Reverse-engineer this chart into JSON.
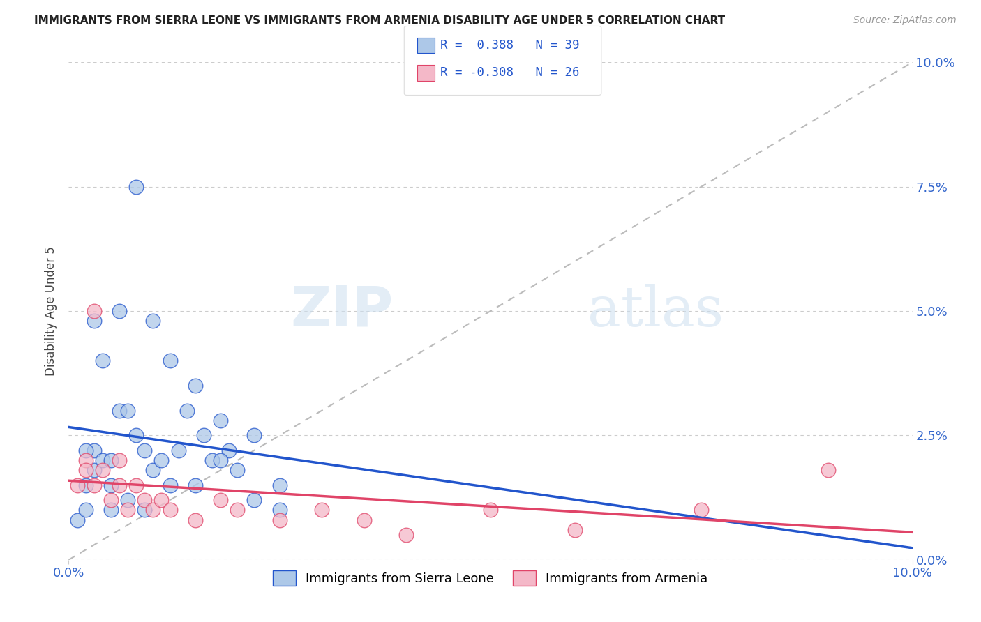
{
  "title": "IMMIGRANTS FROM SIERRA LEONE VS IMMIGRANTS FROM ARMENIA DISABILITY AGE UNDER 5 CORRELATION CHART",
  "source": "Source: ZipAtlas.com",
  "ylabel": "Disability Age Under 5",
  "legend_label_1": "Immigrants from Sierra Leone",
  "legend_label_2": "Immigrants from Armenia",
  "r1": 0.388,
  "n1": 39,
  "r2": -0.308,
  "n2": 26,
  "color_sierra": "#adc8e8",
  "color_armenia": "#f4b8c8",
  "color_sierra_line": "#2255cc",
  "color_armenia_line": "#e04468",
  "color_diag": "#bbbbbb",
  "sierra_x": [
    0.001,
    0.002,
    0.002,
    0.003,
    0.003,
    0.004,
    0.005,
    0.005,
    0.006,
    0.007,
    0.008,
    0.009,
    0.01,
    0.011,
    0.012,
    0.013,
    0.014,
    0.015,
    0.016,
    0.017,
    0.018,
    0.019,
    0.02,
    0.022,
    0.025,
    0.002,
    0.003,
    0.004,
    0.006,
    0.008,
    0.01,
    0.012,
    0.015,
    0.018,
    0.022,
    0.025,
    0.005,
    0.007,
    0.009
  ],
  "sierra_y": [
    0.008,
    0.01,
    0.015,
    0.018,
    0.022,
    0.02,
    0.01,
    0.015,
    0.03,
    0.012,
    0.025,
    0.022,
    0.018,
    0.02,
    0.015,
    0.022,
    0.03,
    0.035,
    0.025,
    0.02,
    0.028,
    0.022,
    0.018,
    0.025,
    0.015,
    0.022,
    0.048,
    0.04,
    0.05,
    0.075,
    0.048,
    0.04,
    0.015,
    0.02,
    0.012,
    0.01,
    0.02,
    0.03,
    0.01
  ],
  "armenia_x": [
    0.001,
    0.002,
    0.002,
    0.003,
    0.004,
    0.005,
    0.006,
    0.007,
    0.008,
    0.009,
    0.01,
    0.011,
    0.012,
    0.015,
    0.018,
    0.02,
    0.025,
    0.03,
    0.035,
    0.04,
    0.05,
    0.06,
    0.075,
    0.09,
    0.003,
    0.006
  ],
  "armenia_y": [
    0.015,
    0.02,
    0.018,
    0.015,
    0.018,
    0.012,
    0.015,
    0.01,
    0.015,
    0.012,
    0.01,
    0.012,
    0.01,
    0.008,
    0.012,
    0.01,
    0.008,
    0.01,
    0.008,
    0.005,
    0.01,
    0.006,
    0.01,
    0.018,
    0.05,
    0.02
  ],
  "ytick_labels": [
    "0.0%",
    "2.5%",
    "5.0%",
    "7.5%",
    "10.0%"
  ],
  "ytick_values": [
    0.0,
    0.025,
    0.05,
    0.075,
    0.1
  ],
  "xtick_labels": [
    "0.0%",
    "10.0%"
  ],
  "xlim": [
    0.0,
    0.1
  ],
  "ylim": [
    0.0,
    0.1
  ],
  "watermark_zip": "ZIP",
  "watermark_atlas": "atlas",
  "background_color": "#ffffff",
  "grid_color": "#cccccc",
  "blue_line_x0": 0.0,
  "blue_line_y0": 0.0,
  "blue_line_x1": 0.1,
  "blue_line_y1": 0.1,
  "pink_line_x0": 0.0,
  "pink_line_y0": 0.016,
  "pink_line_x1": 0.1,
  "pink_line_y1": 0.003
}
